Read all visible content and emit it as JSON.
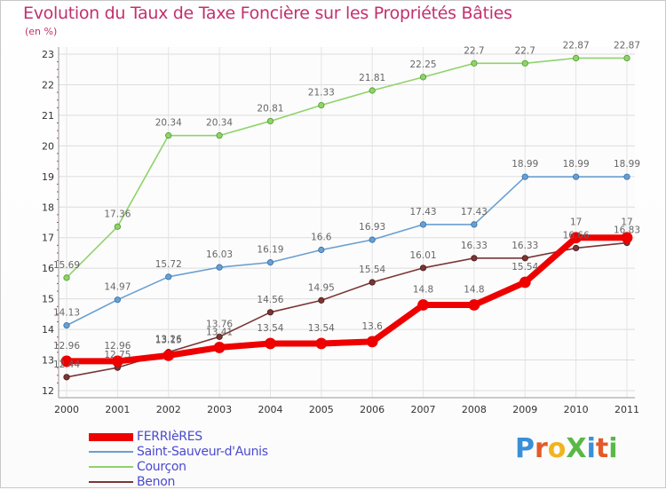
{
  "title": "Evolution du Taux de Taxe Foncière sur les Propriétés Bâties",
  "subtitle": "(en %)",
  "logo": {
    "text": "ProXiti",
    "colors": [
      "#3a8fd8",
      "#e35a2a",
      "#f0b41e",
      "#59b846",
      "#3a8fd8",
      "#e35a2a",
      "#59b846"
    ]
  },
  "chart_data": {
    "type": "line",
    "title": "Evolution du Taux de Taxe Foncière sur les Propriétés Bâties",
    "ylabel": "(en %)",
    "xlabel": "",
    "x": [
      "2000",
      "2001",
      "2002",
      "2003",
      "2004",
      "2005",
      "2006",
      "2007",
      "2008",
      "2009",
      "2010",
      "2011"
    ],
    "ylim": [
      12,
      23
    ],
    "yticks": [
      "12",
      "13",
      "14",
      "15",
      "16",
      "17",
      "18",
      "19",
      "20",
      "21",
      "22",
      "23"
    ],
    "grid": true,
    "legend_position": "bottom-left",
    "series": [
      {
        "name": "FERRIèRES",
        "color": "#ee0000",
        "values": [
          12.96,
          12.96,
          13.15,
          13.41,
          13.54,
          13.54,
          13.6,
          14.8,
          14.8,
          15.54,
          17,
          17
        ],
        "labels": [
          "12.96",
          "12.96",
          "13.15",
          "13.41",
          "13.54",
          "13.54",
          "13.6",
          "14.8",
          "14.8",
          "15.54",
          "17",
          "17"
        ]
      },
      {
        "name": "Saint-Sauveur-d'Aunis",
        "color": "#6a9fd0",
        "values": [
          14.13,
          14.97,
          15.72,
          16.03,
          16.19,
          16.6,
          16.93,
          17.43,
          17.43,
          18.99,
          18.99,
          18.99
        ],
        "labels": [
          "14.13",
          "14.97",
          "15.72",
          "16.03",
          "16.19",
          "16.6",
          "16.93",
          "17.43",
          "17.43",
          "18.99",
          "18.99",
          "18.99"
        ]
      },
      {
        "name": "Courçon",
        "color": "#8fd36a",
        "values": [
          15.69,
          17.36,
          20.34,
          20.34,
          20.81,
          21.33,
          21.81,
          22.25,
          22.7,
          22.7,
          22.87,
          22.87
        ],
        "labels": [
          "15.69",
          "17.36",
          "20.34",
          "20.34",
          "20.81",
          "21.33",
          "21.81",
          "22.25",
          "22.7",
          "22.7",
          "22.87",
          "22.87"
        ]
      },
      {
        "name": "Benon",
        "color": "#7a3535",
        "values": [
          12.44,
          12.75,
          13.26,
          13.76,
          14.56,
          14.95,
          15.54,
          16.01,
          16.33,
          16.33,
          16.66,
          16.83
        ],
        "labels": [
          "12.44",
          "12.75",
          "13.26",
          "13.76",
          "14.56",
          "14.95",
          "15.54",
          "16.01",
          "16.33",
          "16.33",
          "16.66",
          "16.83"
        ]
      }
    ]
  }
}
